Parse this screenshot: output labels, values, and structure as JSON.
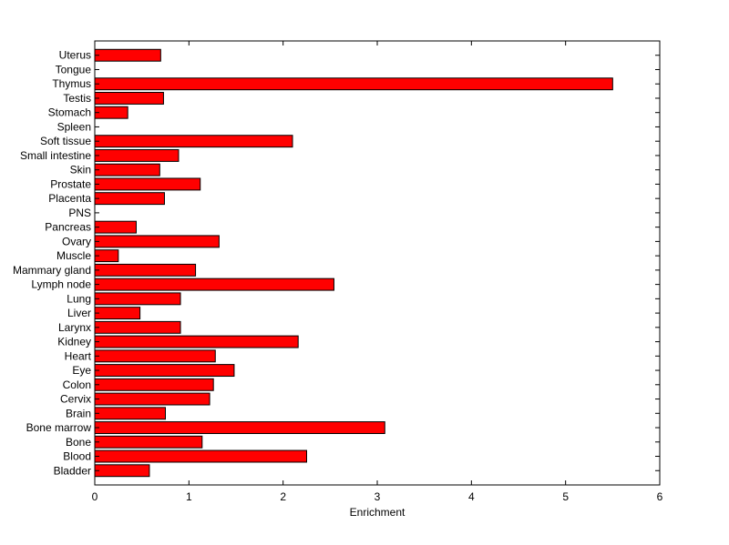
{
  "colors": {
    "bar": "#ff0000",
    "bar_edge": "#000000",
    "axes": "#000000",
    "background": "#ffffff"
  },
  "chart_data": {
    "type": "bar",
    "orientation": "horizontal",
    "title": "",
    "xlabel": "Enrichment",
    "ylabel": "",
    "xlim": [
      0,
      6
    ],
    "x_ticks": [
      0,
      1,
      2,
      3,
      4,
      5,
      6
    ],
    "grid": false,
    "legend": "none",
    "categories": [
      "Uterus",
      "Tongue",
      "Thymus",
      "Testis",
      "Stomach",
      "Spleen",
      "Soft tissue",
      "Small intestine",
      "Skin",
      "Prostate",
      "Placenta",
      "PNS",
      "Pancreas",
      "Ovary",
      "Muscle",
      "Mammary gland",
      "Lymph node",
      "Lung",
      "Liver",
      "Larynx",
      "Kidney",
      "Heart",
      "Eye",
      "Colon",
      "Cervix",
      "Brain",
      "Bone marrow",
      "Bone",
      "Blood",
      "Bladder"
    ],
    "values": [
      0.7,
      0,
      5.5,
      0.73,
      0.35,
      0,
      2.1,
      0.89,
      0.69,
      1.12,
      0.74,
      0,
      0.44,
      1.32,
      0.25,
      1.07,
      2.54,
      0.91,
      0.48,
      0.91,
      2.16,
      1.28,
      1.48,
      1.26,
      1.22,
      0.75,
      3.08,
      1.14,
      2.25,
      0.58
    ]
  }
}
